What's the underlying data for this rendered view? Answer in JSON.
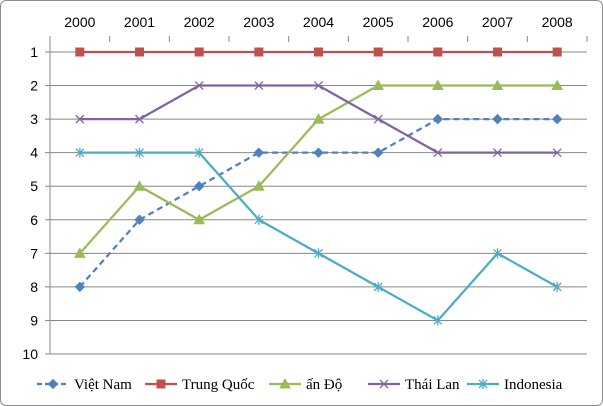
{
  "chart_data": {
    "type": "line",
    "title": "",
    "xlabel": "",
    "ylabel": "",
    "x": [
      "2000",
      "2001",
      "2002",
      "2003",
      "2004",
      "2005",
      "2006",
      "2007",
      "2008"
    ],
    "y_ticks": [
      "1",
      "2",
      "3",
      "4",
      "5",
      "6",
      "7",
      "8",
      "9",
      "10"
    ],
    "ylim": [
      1,
      10
    ],
    "y_inverted": true,
    "grid": true,
    "legend_position": "bottom",
    "series": [
      {
        "name": "Việt Nam",
        "values": [
          8,
          6,
          5,
          4,
          4,
          4,
          3,
          3,
          3
        ],
        "color": "#4f81bd",
        "marker": "diamond",
        "dashed": true
      },
      {
        "name": "Trung Quốc",
        "values": [
          1,
          1,
          1,
          1,
          1,
          1,
          1,
          1,
          1
        ],
        "color": "#c0504d",
        "marker": "square",
        "dashed": false
      },
      {
        "name": "ấn Độ",
        "values": [
          7,
          5,
          6,
          5,
          3,
          2,
          2,
          2,
          2
        ],
        "color": "#9bbb59",
        "marker": "triangle",
        "dashed": false
      },
      {
        "name": "Thái Lan",
        "values": [
          3,
          3,
          2,
          2,
          2,
          3,
          4,
          4,
          4
        ],
        "color": "#8064a2",
        "marker": "x",
        "dashed": false
      },
      {
        "name": "Indonesia",
        "values": [
          4,
          4,
          4,
          6,
          7,
          8,
          9,
          7,
          8
        ],
        "color": "#4bacc6",
        "marker": "star",
        "dashed": false
      }
    ]
  }
}
